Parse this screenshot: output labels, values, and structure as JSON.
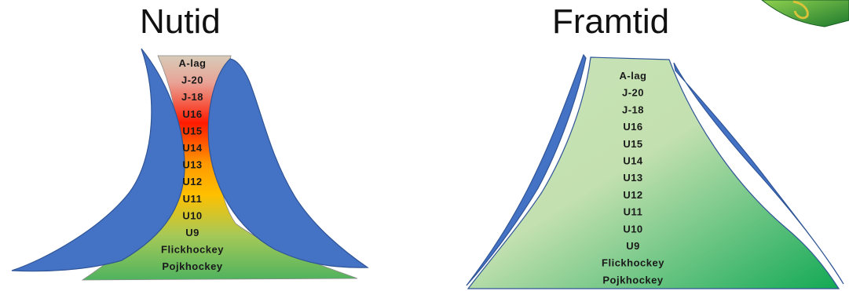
{
  "left": {
    "title": "Nutid",
    "levels": [
      "A-lag",
      "J-20",
      "J-18",
      "U16",
      "U15",
      "U14",
      "U13",
      "U12",
      "U11",
      "U10",
      "U9",
      "Flickhockey",
      "Pojkhockey"
    ]
  },
  "right": {
    "title": "Framtid",
    "levels": [
      "A-lag",
      "J-20",
      "J-18",
      "U16",
      "U15",
      "U14",
      "U13",
      "U12",
      "U11",
      "U10",
      "U9",
      "Flickhockey",
      "Pojkhockey"
    ]
  },
  "colors": {
    "blue": "#4472c4",
    "blue_stroke": "#2f5597",
    "left_gradient": [
      "#d7cbb8",
      "#e8a396",
      "#ff0000",
      "#ffc000",
      "#a6c957",
      "#4fb35f"
    ],
    "right_gradient": [
      "#c5e0b4",
      "#00a650"
    ]
  },
  "logo_icon": "club-logo-icon"
}
